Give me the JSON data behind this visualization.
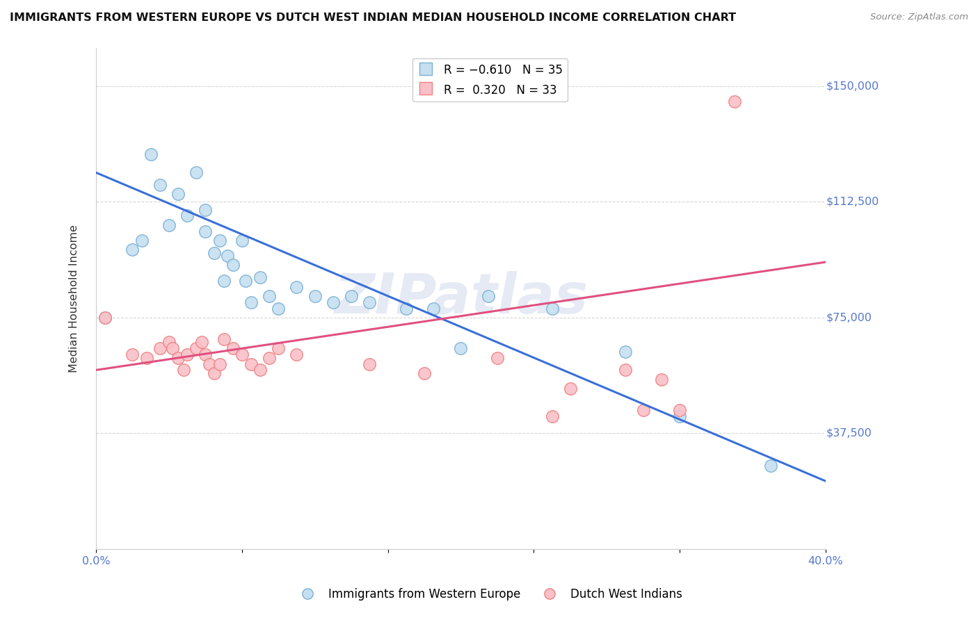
{
  "title": "IMMIGRANTS FROM WESTERN EUROPE VS DUTCH WEST INDIAN MEDIAN HOUSEHOLD INCOME CORRELATION CHART",
  "source": "Source: ZipAtlas.com",
  "ylabel": "Median Household Income",
  "yticks": [
    0,
    37500,
    75000,
    112500,
    150000
  ],
  "ytick_labels": [
    "",
    "$37,500",
    "$75,000",
    "$112,500",
    "$150,000"
  ],
  "xlim": [
    0.0,
    0.4
  ],
  "ylim": [
    0,
    162500
  ],
  "blue_color": "#7bafd4",
  "pink_color": "#f08080",
  "blue_fill": "#c5dff0",
  "pink_fill": "#f9c0c8",
  "legend_blue_r": "R = -0.610",
  "legend_blue_n": "N = 35",
  "legend_pink_r": "R =  0.320",
  "legend_pink_n": "N = 33",
  "legend_label_blue": "Immigrants from Western Europe",
  "legend_label_pink": "Dutch West Indians",
  "watermark": "ZIPatlas",
  "blue_scatter_x": [
    0.005,
    0.02,
    0.025,
    0.03,
    0.035,
    0.04,
    0.045,
    0.05,
    0.055,
    0.06,
    0.06,
    0.065,
    0.068,
    0.07,
    0.072,
    0.075,
    0.08,
    0.082,
    0.085,
    0.09,
    0.095,
    0.1,
    0.11,
    0.12,
    0.13,
    0.14,
    0.15,
    0.17,
    0.185,
    0.2,
    0.215,
    0.25,
    0.29,
    0.32,
    0.37
  ],
  "blue_scatter_y": [
    75000,
    97000,
    100000,
    128000,
    118000,
    105000,
    115000,
    108000,
    122000,
    103000,
    110000,
    96000,
    100000,
    87000,
    95000,
    92000,
    100000,
    87000,
    80000,
    88000,
    82000,
    78000,
    85000,
    82000,
    80000,
    82000,
    80000,
    78000,
    78000,
    65000,
    82000,
    78000,
    64000,
    43000,
    27000
  ],
  "pink_scatter_x": [
    0.005,
    0.02,
    0.028,
    0.035,
    0.04,
    0.042,
    0.045,
    0.048,
    0.05,
    0.055,
    0.058,
    0.06,
    0.062,
    0.065,
    0.068,
    0.07,
    0.075,
    0.08,
    0.085,
    0.09,
    0.095,
    0.1,
    0.11,
    0.15,
    0.18,
    0.22,
    0.25,
    0.26,
    0.29,
    0.3,
    0.31,
    0.32,
    0.35
  ],
  "pink_scatter_y": [
    75000,
    63000,
    62000,
    65000,
    67000,
    65000,
    62000,
    58000,
    63000,
    65000,
    67000,
    63000,
    60000,
    57000,
    60000,
    68000,
    65000,
    63000,
    60000,
    58000,
    62000,
    65000,
    63000,
    60000,
    57000,
    62000,
    43000,
    52000,
    58000,
    45000,
    55000,
    45000,
    145000
  ],
  "blue_line_x": [
    0.0,
    0.4
  ],
  "blue_line_y": [
    122000,
    22000
  ],
  "pink_line_x": [
    0.0,
    0.4
  ],
  "pink_line_y": [
    58000,
    93000
  ],
  "background_color": "#ffffff",
  "grid_color": "#cccccc",
  "title_color": "#111111",
  "tick_label_color": "#5577cc"
}
